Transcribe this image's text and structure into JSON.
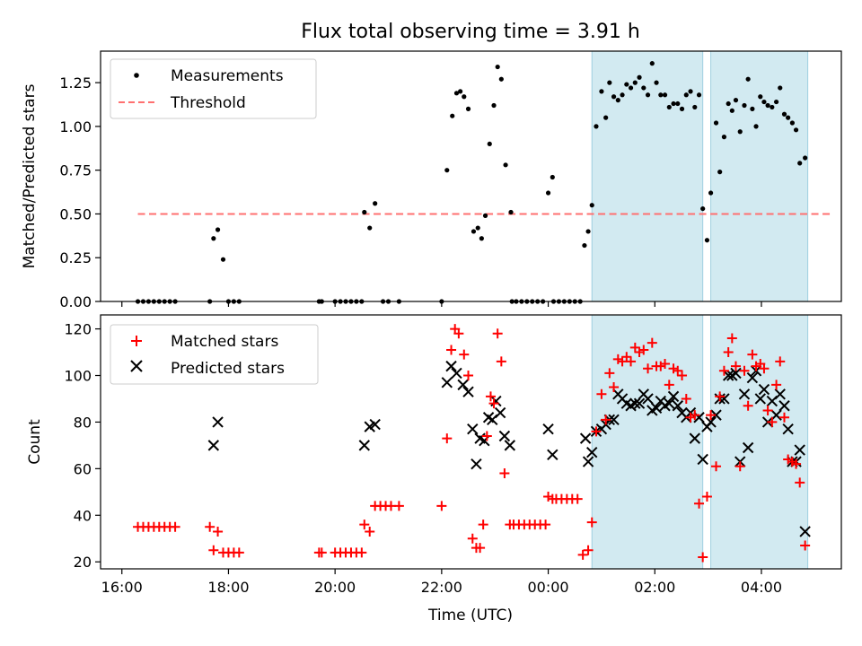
{
  "chart_data": {
    "title": "Flux total observing time = 3.91 h",
    "xlabel": "Time (UTC)",
    "x_ticks": [
      {
        "h": -8,
        "label": "16:00"
      },
      {
        "h": -6,
        "label": "18:00"
      },
      {
        "h": -4,
        "label": "20:00"
      },
      {
        "h": -2,
        "label": "22:00"
      },
      {
        "h": 0,
        "label": "00:00"
      },
      {
        "h": 2,
        "label": "02:00"
      },
      {
        "h": 4,
        "label": "04:00"
      }
    ],
    "xlim": [
      -8.4,
      5.5
    ],
    "shaded_intervals": [
      [
        0.82,
        2.9
      ],
      [
        3.05,
        4.87
      ]
    ],
    "colors": {
      "measure": "#000000",
      "threshold": "#ff7070",
      "matched": "#ff0000",
      "predicted": "#000000",
      "shade": "#add8e6"
    },
    "top": {
      "type": "scatter",
      "ylabel": "Matched/Predicted stars",
      "ylim": [
        0,
        1.43
      ],
      "y_ticks": [
        "0.00",
        "0.25",
        "0.50",
        "0.75",
        "1.00",
        "1.25"
      ],
      "y_tick_values": [
        0,
        0.25,
        0.5,
        0.75,
        1.0,
        1.25
      ],
      "threshold": {
        "value": 0.5,
        "x_range": [
          -7.7,
          5.3
        ]
      },
      "legend": [
        "Measurements",
        "Threshold"
      ],
      "points": [
        [
          -7.7,
          0
        ],
        [
          -7.6,
          0
        ],
        [
          -7.5,
          0
        ],
        [
          -7.4,
          0
        ],
        [
          -7.3,
          0
        ],
        [
          -7.2,
          0
        ],
        [
          -7.1,
          0
        ],
        [
          -7.0,
          0
        ],
        [
          -6.35,
          0
        ],
        [
          -6.28,
          0.36
        ],
        [
          -6.2,
          0.41
        ],
        [
          -6.1,
          0.24
        ],
        [
          -6.0,
          0
        ],
        [
          -5.9,
          0
        ],
        [
          -5.8,
          0
        ],
        [
          -4.3,
          0
        ],
        [
          -4.25,
          0
        ],
        [
          -4.0,
          0
        ],
        [
          -3.9,
          0
        ],
        [
          -3.8,
          0
        ],
        [
          -3.7,
          0
        ],
        [
          -3.6,
          0
        ],
        [
          -3.5,
          0
        ],
        [
          -3.45,
          0.51
        ],
        [
          -3.35,
          0.42
        ],
        [
          -3.25,
          0.56
        ],
        [
          -3.1,
          0
        ],
        [
          -3.0,
          0
        ],
        [
          -2.8,
          0
        ],
        [
          -2.0,
          0
        ],
        [
          -1.9,
          0.75
        ],
        [
          -1.8,
          1.06
        ],
        [
          -1.72,
          1.19
        ],
        [
          -1.65,
          1.2
        ],
        [
          -1.58,
          1.17
        ],
        [
          -1.5,
          1.1
        ],
        [
          -1.4,
          0.4
        ],
        [
          -1.32,
          0.42
        ],
        [
          -1.25,
          0.36
        ],
        [
          -1.18,
          0.49
        ],
        [
          -1.1,
          0.9
        ],
        [
          -1.02,
          1.12
        ],
        [
          -0.95,
          1.34
        ],
        [
          -0.88,
          1.27
        ],
        [
          -0.8,
          0.78
        ],
        [
          -0.7,
          0.51
        ],
        [
          -0.68,
          0
        ],
        [
          -0.6,
          0
        ],
        [
          -0.5,
          0
        ],
        [
          -0.4,
          0
        ],
        [
          -0.3,
          0
        ],
        [
          -0.2,
          0
        ],
        [
          -0.1,
          0
        ],
        [
          0.0,
          0.62
        ],
        [
          0.08,
          0.71
        ],
        [
          0.1,
          0
        ],
        [
          0.2,
          0
        ],
        [
          0.3,
          0
        ],
        [
          0.4,
          0
        ],
        [
          0.5,
          0
        ],
        [
          0.6,
          0
        ],
        [
          0.68,
          0.32
        ],
        [
          0.75,
          0.4
        ],
        [
          0.82,
          0.55
        ],
        [
          0.9,
          1.0
        ],
        [
          1.0,
          1.2
        ],
        [
          1.08,
          1.05
        ],
        [
          1.15,
          1.25
        ],
        [
          1.23,
          1.17
        ],
        [
          1.31,
          1.15
        ],
        [
          1.39,
          1.18
        ],
        [
          1.47,
          1.24
        ],
        [
          1.55,
          1.22
        ],
        [
          1.63,
          1.25
        ],
        [
          1.71,
          1.28
        ],
        [
          1.79,
          1.22
        ],
        [
          1.87,
          1.18
        ],
        [
          1.95,
          1.36
        ],
        [
          2.03,
          1.25
        ],
        [
          2.11,
          1.18
        ],
        [
          2.19,
          1.18
        ],
        [
          2.27,
          1.11
        ],
        [
          2.35,
          1.13
        ],
        [
          2.43,
          1.13
        ],
        [
          2.51,
          1.1
        ],
        [
          2.59,
          1.18
        ],
        [
          2.67,
          1.2
        ],
        [
          2.75,
          1.11
        ],
        [
          2.83,
          1.18
        ],
        [
          2.9,
          0.53
        ],
        [
          2.98,
          0.35
        ],
        [
          3.05,
          0.62
        ],
        [
          3.15,
          1.02
        ],
        [
          3.22,
          0.74
        ],
        [
          3.3,
          0.94
        ],
        [
          3.38,
          1.13
        ],
        [
          3.45,
          1.09
        ],
        [
          3.52,
          1.15
        ],
        [
          3.6,
          0.97
        ],
        [
          3.68,
          1.12
        ],
        [
          3.75,
          1.27
        ],
        [
          3.83,
          1.1
        ],
        [
          3.9,
          1.0
        ],
        [
          3.98,
          1.17
        ],
        [
          4.05,
          1.14
        ],
        [
          4.12,
          1.12
        ],
        [
          4.2,
          1.11
        ],
        [
          4.28,
          1.14
        ],
        [
          4.35,
          1.22
        ],
        [
          4.43,
          1.07
        ],
        [
          4.5,
          1.05
        ],
        [
          4.58,
          1.02
        ],
        [
          4.65,
          0.98
        ],
        [
          4.72,
          0.79
        ],
        [
          4.82,
          0.82
        ]
      ]
    },
    "bottom": {
      "type": "scatter",
      "ylabel": "Count",
      "ylim": [
        17,
        126
      ],
      "y_ticks": [
        "20",
        "40",
        "60",
        "80",
        "100",
        "120"
      ],
      "y_tick_values": [
        20,
        40,
        60,
        80,
        100,
        120
      ],
      "legend": [
        "Matched stars",
        "Predicted stars"
      ],
      "matched": [
        [
          -7.7,
          35
        ],
        [
          -7.6,
          35
        ],
        [
          -7.5,
          35
        ],
        [
          -7.4,
          35
        ],
        [
          -7.3,
          35
        ],
        [
          -7.2,
          35
        ],
        [
          -7.1,
          35
        ],
        [
          -7.0,
          35
        ],
        [
          -6.35,
          35
        ],
        [
          -6.28,
          25
        ],
        [
          -6.2,
          33
        ],
        [
          -6.1,
          24
        ],
        [
          -6.0,
          24
        ],
        [
          -5.9,
          24
        ],
        [
          -5.8,
          24
        ],
        [
          -4.3,
          24
        ],
        [
          -4.25,
          24
        ],
        [
          -4.0,
          24
        ],
        [
          -3.9,
          24
        ],
        [
          -3.8,
          24
        ],
        [
          -3.7,
          24
        ],
        [
          -3.6,
          24
        ],
        [
          -3.5,
          24
        ],
        [
          -3.45,
          36
        ],
        [
          -3.35,
          33
        ],
        [
          -3.25,
          44
        ],
        [
          -3.15,
          44
        ],
        [
          -3.05,
          44
        ],
        [
          -2.95,
          44
        ],
        [
          -2.8,
          44
        ],
        [
          -2.0,
          44
        ],
        [
          -1.9,
          73
        ],
        [
          -1.82,
          111
        ],
        [
          -1.75,
          120
        ],
        [
          -1.68,
          118
        ],
        [
          -1.58,
          109
        ],
        [
          -1.5,
          100
        ],
        [
          -1.42,
          30
        ],
        [
          -1.35,
          26
        ],
        [
          -1.28,
          26
        ],
        [
          -1.22,
          36
        ],
        [
          -1.15,
          74
        ],
        [
          -1.08,
          91
        ],
        [
          -1.02,
          88
        ],
        [
          -0.95,
          118
        ],
        [
          -0.88,
          106
        ],
        [
          -0.82,
          58
        ],
        [
          -0.72,
          36
        ],
        [
          -0.65,
          36
        ],
        [
          -0.55,
          36
        ],
        [
          -0.45,
          36
        ],
        [
          -0.35,
          36
        ],
        [
          -0.25,
          36
        ],
        [
          -0.15,
          36
        ],
        [
          -0.05,
          36
        ],
        [
          0.0,
          48
        ],
        [
          0.08,
          47
        ],
        [
          0.15,
          47
        ],
        [
          0.25,
          47
        ],
        [
          0.35,
          47
        ],
        [
          0.45,
          47
        ],
        [
          0.55,
          47
        ],
        [
          0.65,
          23
        ],
        [
          0.75,
          25
        ],
        [
          0.82,
          37
        ],
        [
          0.9,
          76
        ],
        [
          1.0,
          92
        ],
        [
          1.08,
          81
        ],
        [
          1.15,
          101
        ],
        [
          1.23,
          95
        ],
        [
          1.31,
          107
        ],
        [
          1.39,
          106
        ],
        [
          1.47,
          108
        ],
        [
          1.55,
          106
        ],
        [
          1.63,
          112
        ],
        [
          1.71,
          110
        ],
        [
          1.79,
          111
        ],
        [
          1.87,
          103
        ],
        [
          1.95,
          114
        ],
        [
          2.03,
          104
        ],
        [
          2.11,
          104
        ],
        [
          2.19,
          105
        ],
        [
          2.27,
          96
        ],
        [
          2.35,
          103
        ],
        [
          2.43,
          102
        ],
        [
          2.51,
          100
        ],
        [
          2.59,
          90
        ],
        [
          2.67,
          82
        ],
        [
          2.75,
          83
        ],
        [
          2.83,
          45
        ],
        [
          2.9,
          22
        ],
        [
          2.98,
          48
        ],
        [
          3.05,
          83
        ],
        [
          3.15,
          61
        ],
        [
          3.22,
          91
        ],
        [
          3.3,
          102
        ],
        [
          3.38,
          110
        ],
        [
          3.45,
          116
        ],
        [
          3.52,
          104
        ],
        [
          3.6,
          61
        ],
        [
          3.68,
          102
        ],
        [
          3.75,
          87
        ],
        [
          3.83,
          109
        ],
        [
          3.9,
          104
        ],
        [
          3.98,
          105
        ],
        [
          4.05,
          103
        ],
        [
          4.12,
          85
        ],
        [
          4.2,
          80
        ],
        [
          4.28,
          96
        ],
        [
          4.35,
          106
        ],
        [
          4.43,
          82
        ],
        [
          4.5,
          64
        ],
        [
          4.58,
          63
        ],
        [
          4.65,
          62
        ],
        [
          4.72,
          54
        ],
        [
          4.82,
          27
        ]
      ],
      "predicted": [
        [
          -6.28,
          70
        ],
        [
          -6.2,
          80
        ],
        [
          -3.45,
          70
        ],
        [
          -3.35,
          78
        ],
        [
          -3.25,
          79
        ],
        [
          -1.9,
          97
        ],
        [
          -1.82,
          104
        ],
        [
          -1.72,
          101
        ],
        [
          -1.6,
          96
        ],
        [
          -1.5,
          93
        ],
        [
          -1.42,
          77
        ],
        [
          -1.35,
          62
        ],
        [
          -1.28,
          73
        ],
        [
          -1.2,
          72
        ],
        [
          -1.12,
          82
        ],
        [
          -1.05,
          81
        ],
        [
          -0.98,
          89
        ],
        [
          -0.9,
          84
        ],
        [
          -0.82,
          74
        ],
        [
          -0.72,
          70
        ],
        [
          0.0,
          77
        ],
        [
          0.08,
          66
        ],
        [
          0.7,
          73
        ],
        [
          0.75,
          63
        ],
        [
          0.82,
          67
        ],
        [
          0.9,
          76
        ],
        [
          1.0,
          77
        ],
        [
          1.08,
          79
        ],
        [
          1.15,
          81
        ],
        [
          1.23,
          81
        ],
        [
          1.31,
          92
        ],
        [
          1.39,
          90
        ],
        [
          1.47,
          88
        ],
        [
          1.55,
          87
        ],
        [
          1.63,
          88
        ],
        [
          1.71,
          88
        ],
        [
          1.79,
          92
        ],
        [
          1.87,
          90
        ],
        [
          1.95,
          85
        ],
        [
          2.03,
          86
        ],
        [
          2.11,
          89
        ],
        [
          2.19,
          87
        ],
        [
          2.27,
          88
        ],
        [
          2.35,
          91
        ],
        [
          2.43,
          87
        ],
        [
          2.51,
          84
        ],
        [
          2.59,
          82
        ],
        [
          2.67,
          84
        ],
        [
          2.75,
          73
        ],
        [
          2.83,
          82
        ],
        [
          2.9,
          64
        ],
        [
          2.98,
          78
        ],
        [
          3.05,
          80
        ],
        [
          3.15,
          83
        ],
        [
          3.22,
          90
        ],
        [
          3.3,
          90
        ],
        [
          3.38,
          100
        ],
        [
          3.45,
          100
        ],
        [
          3.52,
          101
        ],
        [
          3.6,
          63
        ],
        [
          3.68,
          92
        ],
        [
          3.75,
          69
        ],
        [
          3.83,
          99
        ],
        [
          3.9,
          102
        ],
        [
          3.98,
          90
        ],
        [
          4.05,
          94
        ],
        [
          4.12,
          80
        ],
        [
          4.2,
          89
        ],
        [
          4.28,
          83
        ],
        [
          4.35,
          92
        ],
        [
          4.43,
          87
        ],
        [
          4.5,
          77
        ],
        [
          4.58,
          63
        ],
        [
          4.65,
          63
        ],
        [
          4.72,
          68
        ],
        [
          4.82,
          33
        ]
      ]
    }
  }
}
